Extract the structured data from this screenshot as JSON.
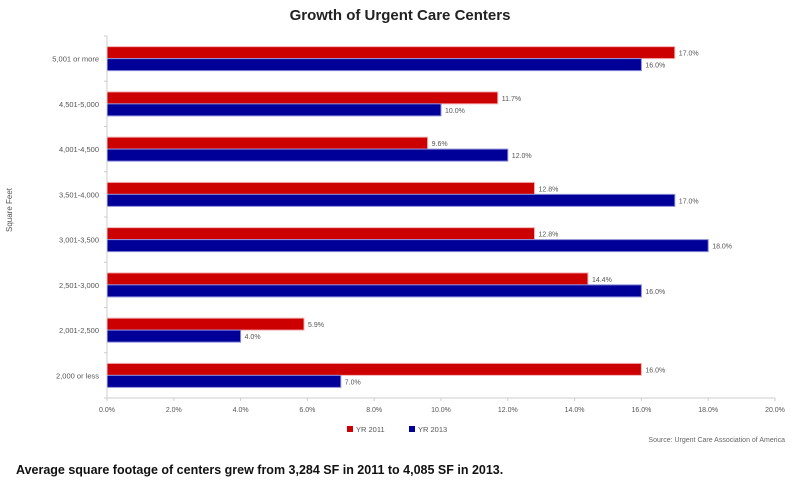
{
  "chart_data": {
    "type": "bar",
    "orientation": "horizontal",
    "title": "Growth of Urgent Care Centers",
    "xlabel": "",
    "ylabel": "Square Feet",
    "xlim": [
      0,
      20
    ],
    "x_ticks": [
      "0.0%",
      "2.0%",
      "4.0%",
      "6.0%",
      "8.0%",
      "10.0%",
      "12.0%",
      "14.0%",
      "16.0%",
      "18.0%",
      "20.0%"
    ],
    "categories": [
      "5,001 or more",
      "4,501-5,000",
      "4,001-4,500",
      "3,501-4,000",
      "3,001-3,500",
      "2,501-3,000",
      "2,001-2,500",
      "2,000 or less"
    ],
    "series": [
      {
        "name": "YR 2011",
        "color": "#cc0000",
        "values": [
          17.0,
          11.7,
          9.6,
          12.8,
          12.8,
          14.4,
          5.9,
          16.0
        ],
        "labels": [
          "17.0%",
          "11.7%",
          "9.6%",
          "12.8%",
          "12.8%",
          "14.4%",
          "5.9%",
          "16.0%"
        ]
      },
      {
        "name": "YR 2013",
        "color": "#000099",
        "values": [
          16.0,
          10.0,
          12.0,
          17.0,
          18.0,
          16.0,
          4.0,
          7.0
        ],
        "labels": [
          "16.0%",
          "10.0%",
          "12.0%",
          "17.0%",
          "18.0%",
          "16.0%",
          "4.0%",
          "7.0%"
        ]
      }
    ],
    "legend_position": "bottom",
    "grid": false,
    "source": "Source: Urgent Care Association of America"
  },
  "caption": "Average square footage of centers grew from 3,284 SF in 2011 to 4,085 SF in 2013."
}
